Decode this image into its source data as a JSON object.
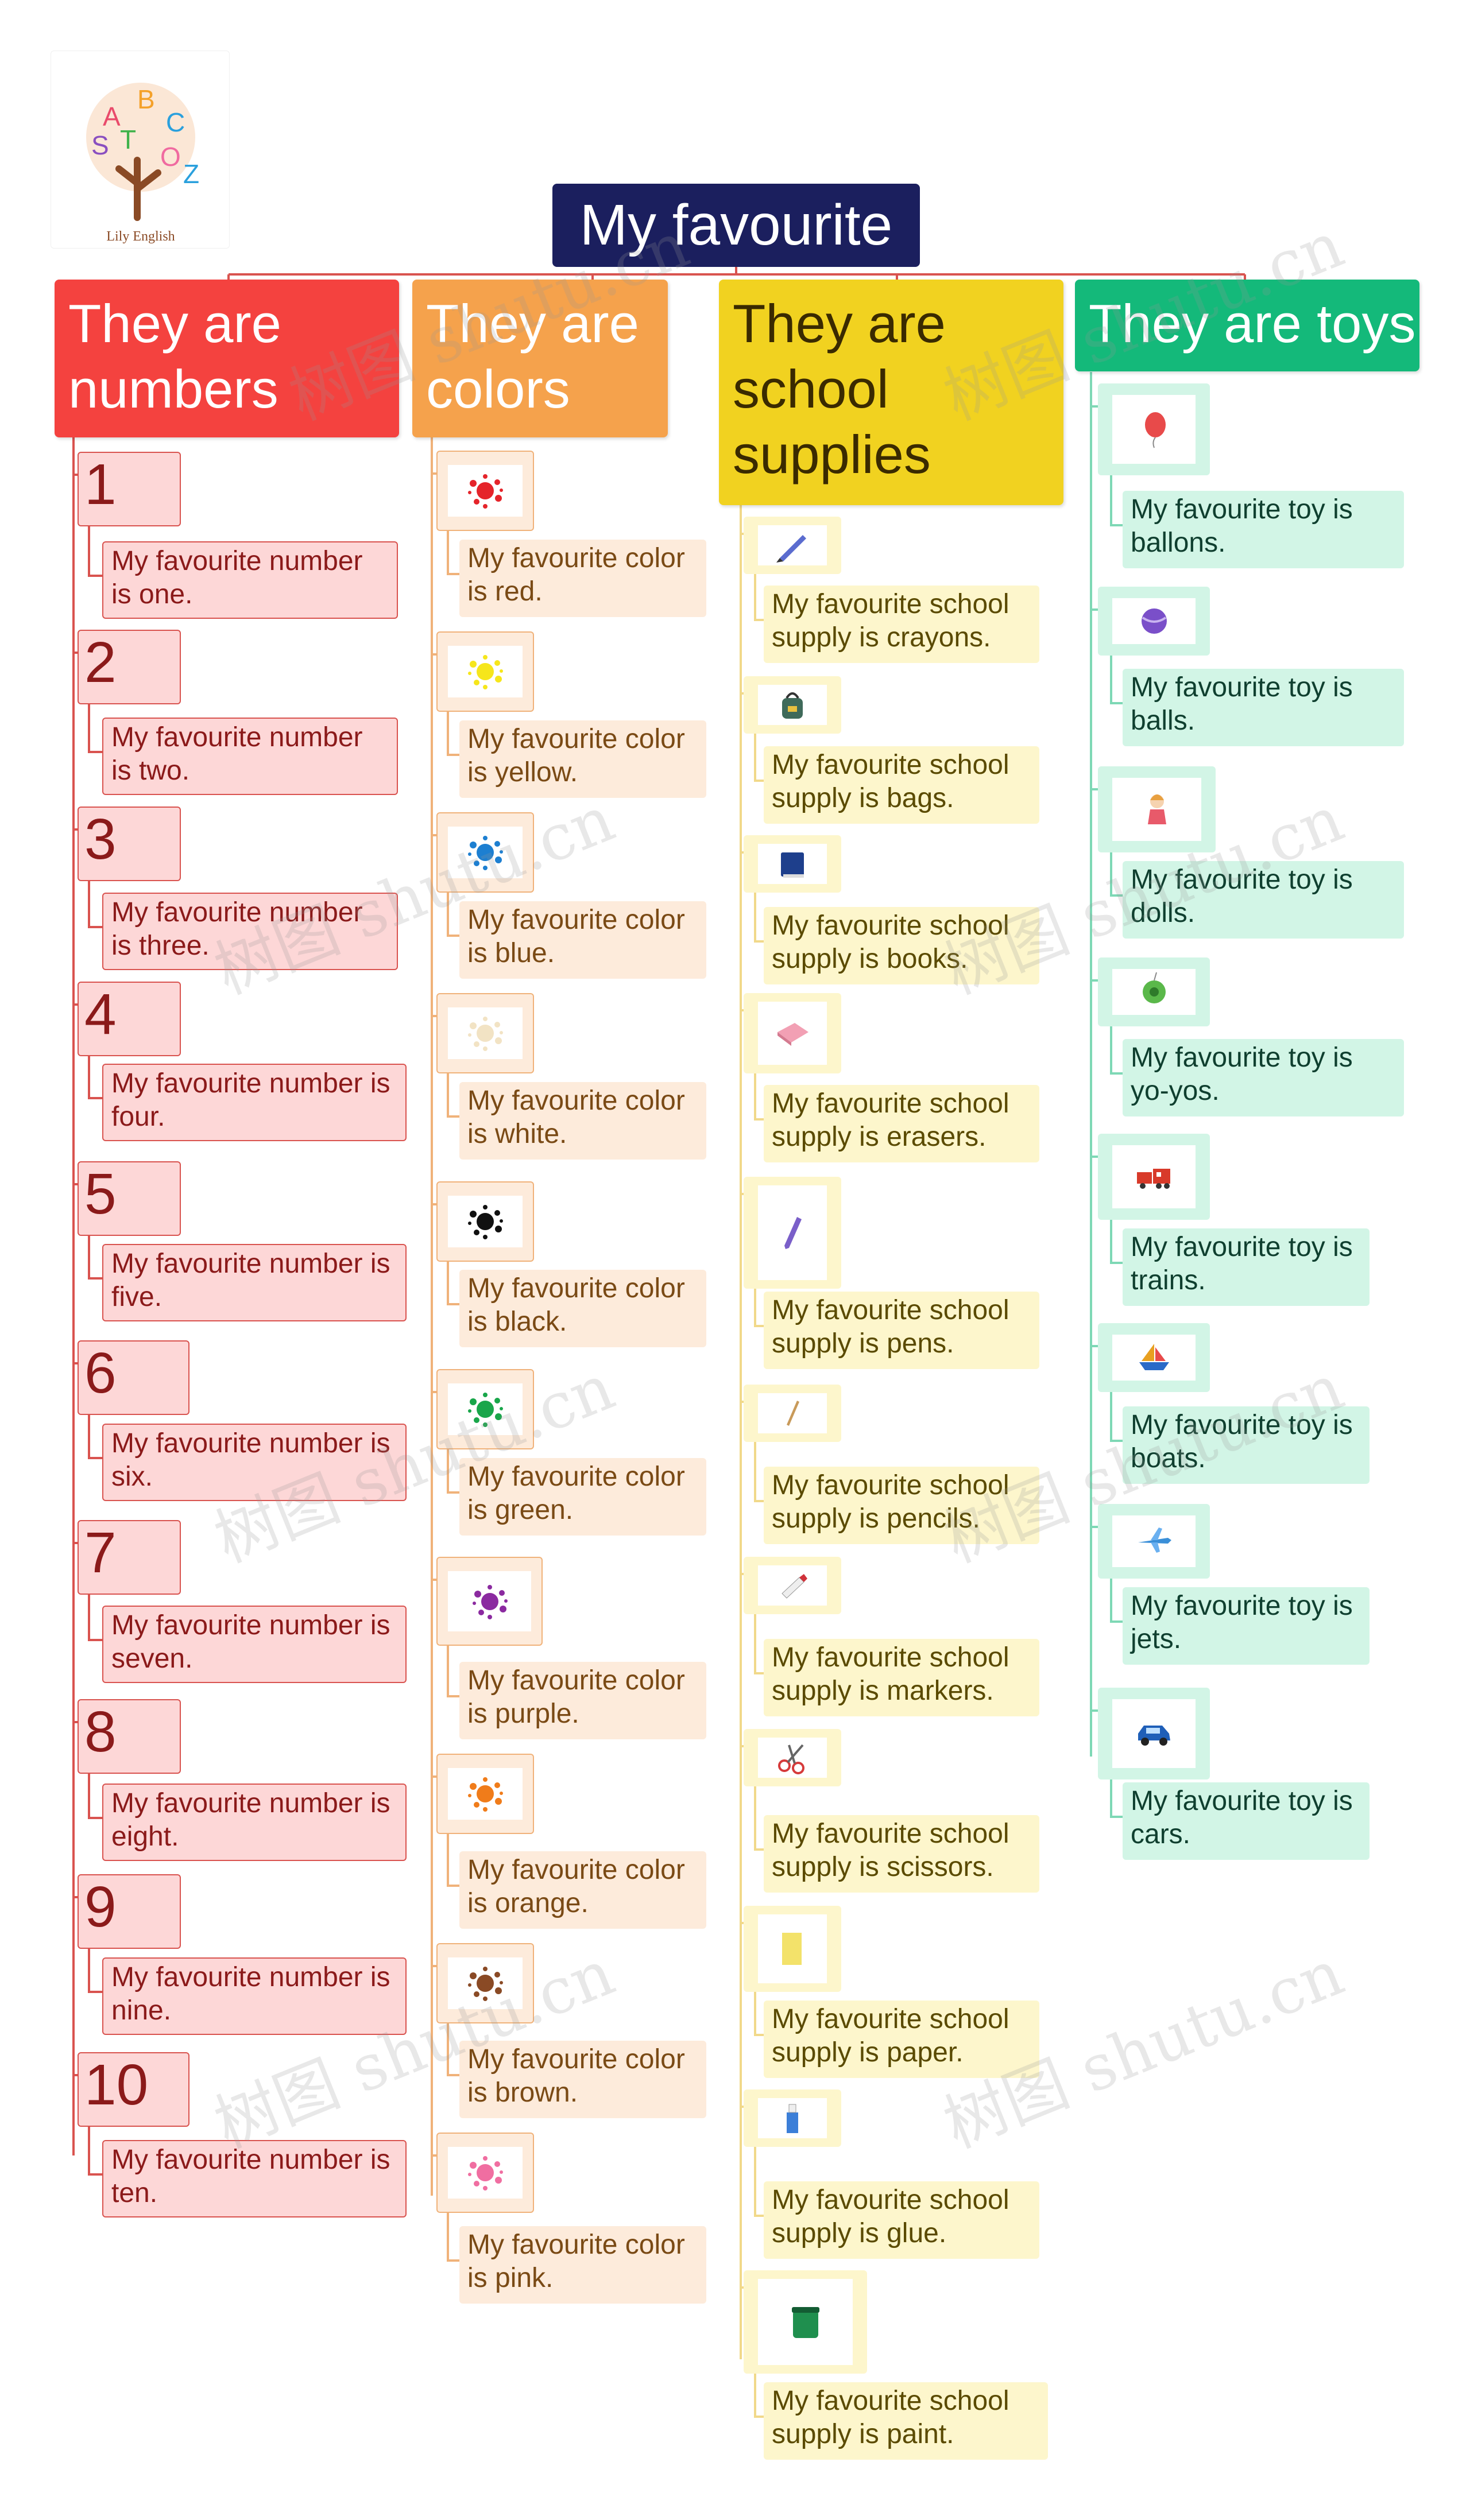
{
  "logo": {
    "letters": "A B C S T O Z",
    "brand": "Lily English"
  },
  "root": {
    "title": "My favourite"
  },
  "watermark": "树图 shutu.cn",
  "colors": {
    "numbers_header": "#f4423f",
    "numbers_node": "#fdd7d7",
    "numbers_border": "#d9534f",
    "numbers_text": "#8b1a1a",
    "colors_header": "#f5a24c",
    "colors_node": "#fdebdb",
    "colors_border": "#f0b27a",
    "colors_text": "#7a4a15",
    "school_header": "#f1d220",
    "school_node": "#fdf6cc",
    "school_text": "#5a4a00",
    "toys_header": "#14b97a",
    "toys_node": "#d2f5e6",
    "toys_text": "#0f3f2f",
    "root": "#1b1f5e"
  },
  "categories": [
    {
      "title": "They are numbers",
      "items": [
        {
          "label": "1",
          "sentence": "My favourite number is one."
        },
        {
          "label": "2",
          "sentence": "My favourite number is two."
        },
        {
          "label": "3",
          "sentence": "My favourite number is three."
        },
        {
          "label": "4",
          "sentence": "My favourite number is four."
        },
        {
          "label": "5",
          "sentence": "My favourite number is five."
        },
        {
          "label": "6",
          "sentence": "My favourite number is six."
        },
        {
          "label": "7",
          "sentence": "My favourite number is seven."
        },
        {
          "label": "8",
          "sentence": "My favourite number is eight."
        },
        {
          "label": "9",
          "sentence": "My favourite number is nine."
        },
        {
          "label": "10",
          "sentence": "My favourite number is ten."
        }
      ]
    },
    {
      "title": "They are colors",
      "items": [
        {
          "icon": "red-splat-icon",
          "swatch": "#e5242a",
          "sentence": "My favourite color is red."
        },
        {
          "icon": "yellow-splat-icon",
          "swatch": "#f6e61b",
          "sentence": "My favourite color is yellow."
        },
        {
          "icon": "blue-splat-icon",
          "swatch": "#1d7fd1",
          "sentence": "My favourite color is blue."
        },
        {
          "icon": "white-splat-icon",
          "swatch": "#f2e3c4",
          "sentence": "My favourite color is white."
        },
        {
          "icon": "black-splat-icon",
          "swatch": "#111111",
          "sentence": "My favourite color is black."
        },
        {
          "icon": "green-splat-icon",
          "swatch": "#19a64a",
          "sentence": "My favourite  color is green."
        },
        {
          "icon": "purple-splat-icon",
          "swatch": "#8b2aa0",
          "sentence": "My favourite  color is purple."
        },
        {
          "icon": "orange-splat-icon",
          "swatch": "#f07c1a",
          "sentence": "My favourite  color is orange."
        },
        {
          "icon": "brown-splat-icon",
          "swatch": "#8a4a25",
          "sentence": "My favourite  color is brown."
        },
        {
          "icon": "pink-splat-icon",
          "swatch": "#f06ea1",
          "sentence": "My favourite  color is pink."
        }
      ]
    },
    {
      "title": "They are school supplies",
      "items": [
        {
          "icon": "crayon-icon",
          "swatch": "#5b6ccf",
          "sentence": "My favourite school supply is crayons."
        },
        {
          "icon": "bag-icon",
          "swatch": "#3f6a5a",
          "sentence": "My favourite school supply is bags."
        },
        {
          "icon": "book-icon",
          "swatch": "#1e3f8c",
          "sentence": "My favourite school supply is books."
        },
        {
          "icon": "eraser-icon",
          "swatch": "#f2a0b4",
          "sentence": "My favourite school supply is erasers."
        },
        {
          "icon": "pen-icon",
          "swatch": "#7a5fc9",
          "sentence": "My favourite school supply is pens."
        },
        {
          "icon": "pencil-icon",
          "swatch": "#c89a5a",
          "sentence": "My favourite school supply is pencils."
        },
        {
          "icon": "marker-icon",
          "swatch": "#d0323a",
          "sentence": "My favourite school supply is markers."
        },
        {
          "icon": "scissors-icon",
          "swatch": "#d63a3a",
          "sentence": "My favourite school supply is scissors."
        },
        {
          "icon": "paper-icon",
          "swatch": "#f3e26a",
          "sentence": "My favourite school supply is paper."
        },
        {
          "icon": "glue-icon",
          "swatch": "#3c7fd8",
          "sentence": "My favourite school supply is glue."
        },
        {
          "icon": "paint-jar-icon",
          "swatch": "#1f8f4e",
          "sentence": "My favourite school supply is paint."
        }
      ]
    },
    {
      "title": "They are toys",
      "items": [
        {
          "icon": "balloon-icon",
          "swatch": "#e84a4a",
          "sentence": "My favourite toy is ballons."
        },
        {
          "icon": "ball-icon",
          "swatch": "#7a4fc9",
          "sentence": "My favourite toy is balls."
        },
        {
          "icon": "doll-icon",
          "swatch": "#e8a040",
          "sentence": "My favourite toy is dolls."
        },
        {
          "icon": "yo-yo-icon",
          "swatch": "#5ab84a",
          "sentence": "My favourite toy is yo-yos."
        },
        {
          "icon": "train-icon",
          "swatch": "#d83a2a",
          "sentence": "My favourite toy is trains."
        },
        {
          "icon": "boat-icon",
          "swatch": "#e8a020",
          "sentence": "My favourite toy is boats."
        },
        {
          "icon": "jet-icon",
          "swatch": "#3a8fd8",
          "sentence": "My favourite toy is jets."
        },
        {
          "icon": "car-icon",
          "swatch": "#1f5fb8",
          "sentence": "My favourite toy is cars."
        }
      ]
    }
  ]
}
